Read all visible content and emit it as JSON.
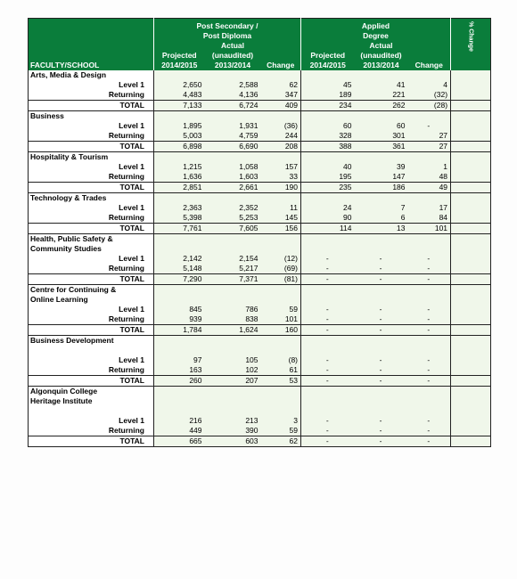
{
  "header": {
    "faculty": "FACULTY/SCHOOL",
    "ps_title1": "Post Secondary /",
    "ps_title2": "Post Diploma",
    "ad_title1": "Applied",
    "ad_title2": "Degree",
    "actual": "Actual",
    "unaudited": "(unaudited)",
    "projected": "Projected",
    "year1": "2014/2015",
    "year2": "2013/2014",
    "change": "Change",
    "pct": "% Change"
  },
  "sections": [
    {
      "name": [
        "Arts, Media & Design"
      ],
      "rows": [
        [
          "Level 1",
          "2,650",
          "2,588",
          "62",
          "45",
          "41",
          "4"
        ],
        [
          "Returning",
          "4,483",
          "4,136",
          "347",
          "189",
          "221",
          "(32)"
        ],
        [
          "TOTAL",
          "7,133",
          "6,724",
          "409",
          "234",
          "262",
          "(28)"
        ]
      ]
    },
    {
      "name": [
        "Business"
      ],
      "rows": [
        [
          "Level 1",
          "1,895",
          "1,931",
          "(36)",
          "60",
          "60",
          "-"
        ],
        [
          "Returning",
          "5,003",
          "4,759",
          "244",
          "328",
          "301",
          "27"
        ],
        [
          "TOTAL",
          "6,898",
          "6,690",
          "208",
          "388",
          "361",
          "27"
        ]
      ]
    },
    {
      "name": [
        "Hospitality & Tourism"
      ],
      "rows": [
        [
          "Level 1",
          "1,215",
          "1,058",
          "157",
          "40",
          "39",
          "1"
        ],
        [
          "Returning",
          "1,636",
          "1,603",
          "33",
          "195",
          "147",
          "48"
        ],
        [
          "TOTAL",
          "2,851",
          "2,661",
          "190",
          "235",
          "186",
          "49"
        ]
      ]
    },
    {
      "name": [
        "Technology & Trades"
      ],
      "rows": [
        [
          "Level 1",
          "2,363",
          "2,352",
          "11",
          "24",
          "7",
          "17"
        ],
        [
          "Returning",
          "5,398",
          "5,253",
          "145",
          "90",
          "6",
          "84"
        ],
        [
          "TOTAL",
          "7,761",
          "7,605",
          "156",
          "114",
          "13",
          "101"
        ]
      ]
    },
    {
      "name": [
        "Health, Public Safety &",
        "Community Studies"
      ],
      "rows": [
        [
          "Level 1",
          "2,142",
          "2,154",
          "(12)",
          "-",
          "-",
          "-"
        ],
        [
          "Returning",
          "5,148",
          "5,217",
          "(69)",
          "-",
          "-",
          "-"
        ],
        [
          "TOTAL",
          "7,290",
          "7,371",
          "(81)",
          "-",
          "-",
          "-"
        ]
      ]
    },
    {
      "name": [
        "Centre for Continuing &",
        "Online Learning"
      ],
      "rows": [
        [
          "Level 1",
          "845",
          "786",
          "59",
          "-",
          "-",
          "-"
        ],
        [
          "Returning",
          "939",
          "838",
          "101",
          "-",
          "-",
          "-"
        ],
        [
          "TOTAL",
          "1,784",
          "1,624",
          "160",
          "-",
          "-",
          "-"
        ]
      ]
    },
    {
      "name": [
        "Business Development",
        ""
      ],
      "rows": [
        [
          "Level 1",
          "97",
          "105",
          "(8)",
          "-",
          "-",
          "-"
        ],
        [
          "Returning",
          "163",
          "102",
          "61",
          "-",
          "-",
          "-"
        ],
        [
          "TOTAL",
          "260",
          "207",
          "53",
          "-",
          "-",
          "-"
        ]
      ]
    },
    {
      "name": [
        "Algonquin College",
        "Heritage Institute",
        ""
      ],
      "rows": [
        [
          "Level 1",
          "216",
          "213",
          "3",
          "-",
          "-",
          "-"
        ],
        [
          "Returning",
          "449",
          "390",
          "59",
          "-",
          "-",
          "-"
        ],
        [
          "TOTAL",
          "665",
          "603",
          "62",
          "-",
          "-",
          "-"
        ]
      ]
    }
  ]
}
